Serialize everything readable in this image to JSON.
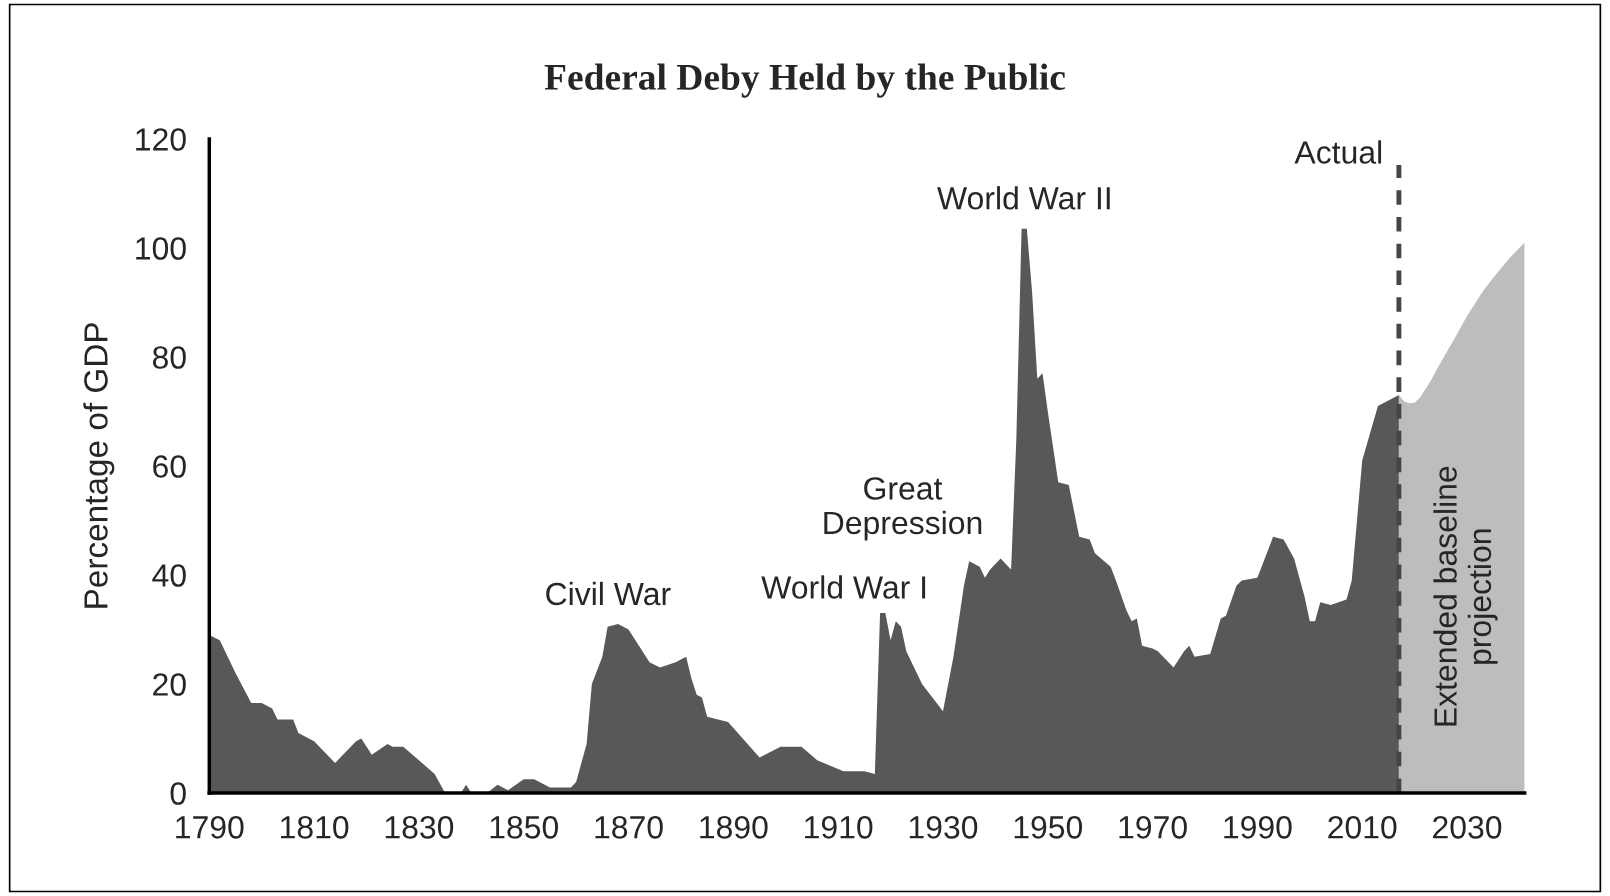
{
  "chart_data": {
    "type": "area",
    "title": "Federal Deby Held by the Public",
    "ylabel": "Percentage of GDP",
    "series": [
      {
        "color": "#58585a",
        "x": [
          1790,
          1792,
          1795,
          1798,
          1800,
          1802,
          1803,
          1806,
          1807,
          1810,
          1814,
          1818,
          1819,
          1821,
          1824,
          1825,
          1827,
          1830,
          1833,
          1835,
          1838,
          1839,
          1840,
          1843,
          1845,
          1847,
          1850,
          1852,
          1855,
          1859,
          1860,
          1862,
          1863,
          1865,
          1866,
          1868,
          1870,
          1874,
          1876,
          1879,
          1880,
          1881,
          1882,
          1883,
          1884,
          1885,
          1889,
          1895,
          1899,
          1903,
          1906,
          1911,
          1915,
          1917,
          1918,
          1919,
          1920,
          1921,
          1922,
          1923,
          1926,
          1930,
          1932,
          1934,
          1935,
          1937,
          1938,
          1939,
          1941,
          1943,
          1944,
          1945,
          1946,
          1947,
          1948,
          1949,
          1950,
          1952,
          1954,
          1956,
          1958,
          1959,
          1962,
          1963,
          1965,
          1966,
          1967,
          1968,
          1970,
          1971,
          1974,
          1976,
          1977,
          1978,
          1981,
          1983,
          1984,
          1986,
          1987,
          1990,
          1993,
          1995,
          1997,
          1999,
          2000,
          2001,
          2002,
          2004,
          2007,
          2008,
          2010,
          2013,
          2017
        ],
        "values": [
          29,
          28,
          22,
          16.5,
          16.5,
          15.5,
          13.5,
          13.5,
          11,
          9.5,
          5.5,
          9.5,
          10,
          7,
          9,
          8.5,
          8.5,
          6,
          3.5,
          0,
          0,
          1.5,
          0,
          0,
          1.5,
          0.5,
          2.5,
          2.5,
          1,
          1,
          2,
          9,
          20,
          25,
          30.5,
          31,
          30,
          24,
          23,
          24,
          24.5,
          25,
          21,
          18,
          17.5,
          14,
          13,
          6.5,
          8.5,
          8.5,
          6,
          4,
          4,
          3.5,
          33,
          33,
          28,
          31.5,
          30.5,
          26,
          20,
          15,
          25,
          38,
          42.5,
          41.5,
          39.5,
          41,
          43,
          41,
          65,
          103.5,
          103.5,
          92,
          76,
          77,
          70,
          57,
          56.5,
          47,
          46.5,
          44,
          41.5,
          39,
          33.5,
          31.5,
          32,
          27,
          26.5,
          26,
          23,
          26,
          27,
          25,
          25.5,
          32,
          32.5,
          38,
          39,
          39.5,
          47,
          46.5,
          43,
          36,
          31.5,
          31.5,
          35,
          34.5,
          35.5,
          39,
          61,
          71,
          73
        ]
      },
      {
        "color": "#bcbdbe",
        "x": [
          2017,
          2018,
          2019,
          2020,
          2021,
          2023,
          2025,
          2028,
          2030,
          2033,
          2035,
          2038,
          2041
        ],
        "values": [
          73,
          71.8,
          71.5,
          71.6,
          72.5,
          75.5,
          79,
          84,
          87.5,
          92,
          94.5,
          98,
          101
        ]
      }
    ],
    "xlim": [
      1790,
      2041
    ],
    "xticks": [
      1790,
      1810,
      1830,
      1850,
      1870,
      1890,
      1910,
      1930,
      1950,
      1970,
      1990,
      2010,
      2030
    ],
    "ylim": [
      0,
      120
    ],
    "yticks": [
      0,
      20,
      40,
      60,
      80,
      100,
      120
    ],
    "ref_lines": [
      {
        "axis": "x",
        "value": 2017,
        "label": "Actual",
        "color": "#454547",
        "line_style": "dashed"
      }
    ],
    "annotations": [
      "Civil War",
      "World War I",
      "Great\nDepression",
      "World War II",
      "Extended baseline\nprojection"
    ],
    "grid": false,
    "legend": false
  }
}
